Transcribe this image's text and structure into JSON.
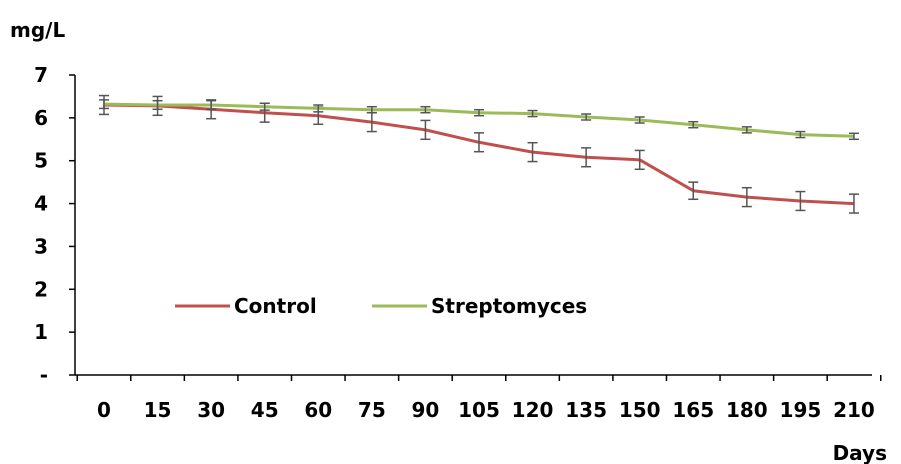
{
  "chart_data": {
    "type": "line",
    "title": "",
    "ylabel": "mg/L",
    "xlabel": "Days",
    "ylim": [
      0,
      7
    ],
    "y_ticks": [
      "-",
      "1",
      "2",
      "3",
      "4",
      "5",
      "6",
      "7"
    ],
    "categories": [
      "0",
      "15",
      "30",
      "45",
      "60",
      "75",
      "90",
      "105",
      "120",
      "135",
      "150",
      "165",
      "180",
      "195",
      "210"
    ],
    "grid": false,
    "legend_position": "bottom-left, inside plot",
    "series": [
      {
        "name": "Control",
        "color": "#c0504d",
        "values": [
          6.3,
          6.28,
          6.2,
          6.12,
          6.05,
          5.9,
          5.72,
          5.43,
          5.2,
          5.08,
          5.02,
          4.3,
          4.15,
          4.06,
          4.0
        ],
        "error": [
          0.22,
          0.22,
          0.22,
          0.22,
          0.2,
          0.22,
          0.22,
          0.22,
          0.22,
          0.22,
          0.22,
          0.2,
          0.22,
          0.22,
          0.22
        ]
      },
      {
        "name": "Streptomyces",
        "color": "#9bbb59",
        "values": [
          6.32,
          6.3,
          6.3,
          6.26,
          6.22,
          6.19,
          6.19,
          6.12,
          6.1,
          6.02,
          5.95,
          5.84,
          5.72,
          5.61,
          5.57
        ],
        "error": [
          0.1,
          0.1,
          0.1,
          0.08,
          0.08,
          0.07,
          0.07,
          0.07,
          0.07,
          0.07,
          0.07,
          0.07,
          0.07,
          0.07,
          0.07
        ]
      }
    ]
  }
}
